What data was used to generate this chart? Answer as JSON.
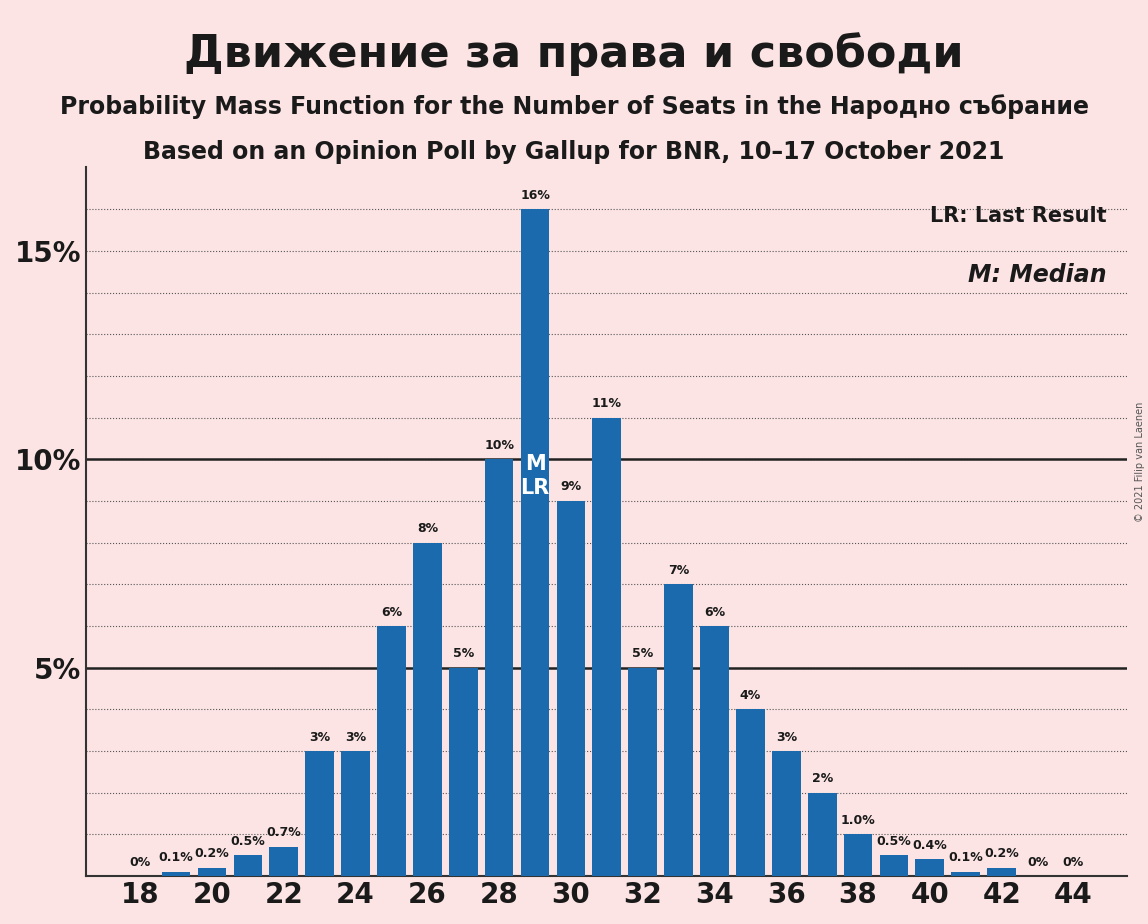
{
  "title": "Движение за права и свободи",
  "subtitle1": "Probability Mass Function for the Number of Seats in the Народно събрание",
  "subtitle2": "Based on an Opinion Poll by Gallup for BNR, 10–17 October 2021",
  "copyright": "© 2021 Filip van Laenen",
  "seats": [
    18,
    19,
    20,
    21,
    22,
    23,
    24,
    25,
    26,
    27,
    28,
    29,
    30,
    31,
    32,
    33,
    34,
    35,
    36,
    37,
    38,
    39,
    40,
    41,
    42,
    43,
    44
  ],
  "values": [
    0.0,
    0.1,
    0.2,
    0.5,
    0.7,
    3.0,
    3.0,
    6.0,
    8.0,
    5.0,
    10.0,
    16.0,
    9.0,
    11.0,
    5.0,
    7.0,
    6.0,
    4.0,
    3.0,
    2.0,
    1.0,
    0.5,
    0.4,
    0.1,
    0.2,
    0.0,
    0.0
  ],
  "labels": [
    "0%",
    "0.1%",
    "0.2%",
    "0.5%",
    "0.7%",
    "3%",
    "3%",
    "6%",
    "8%",
    "5%",
    "10%",
    "16%",
    "9%",
    "11%",
    "5%",
    "7%",
    "6%",
    "4%",
    "3%",
    "2%",
    "1.0%",
    "0.5%",
    "0.4%",
    "0.1%",
    "0.2%",
    "0%",
    "0%"
  ],
  "bar_color": "#1a6aad",
  "background_color": "#fce4e4",
  "median_seat": 29,
  "lr_seat": 29,
  "legend_lr": "LR: Last Result",
  "legend_m": "M: Median",
  "yticks": [
    0,
    5,
    10,
    15
  ],
  "ytick_labels": [
    "",
    "5%",
    "10%",
    "15%"
  ],
  "xticks": [
    18,
    20,
    22,
    24,
    26,
    28,
    30,
    32,
    34,
    36,
    38,
    40,
    42,
    44
  ],
  "ylim": [
    0,
    17
  ],
  "title_fontsize": 32,
  "subtitle_fontsize": 17,
  "bar_width": 0.8
}
